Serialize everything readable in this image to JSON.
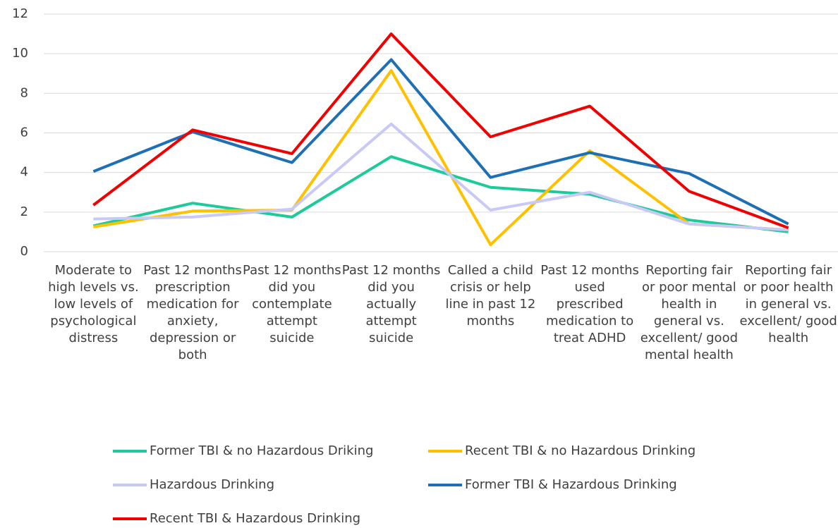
{
  "chart_data": {
    "type": "line",
    "categories": [
      "Moderate to high levels vs. low levels of psychological distress",
      "Past 12 months prescription medication for anxiety, depression or both",
      "Past 12 months did you contemplate attempt suicide",
      "Past 12 months did you actually attempt suicide",
      "Called a child crisis or help line in past 12 months",
      "Past 12 months used prescribed medication to treat ADHD",
      "Reporting fair or poor mental health in general vs. excellent/ good mental health",
      "Reporting fair or poor health in general vs. excellent/ good health"
    ],
    "series": [
      {
        "name": "Former TBI & no Hazardous Driking",
        "color": "#1ec99a",
        "values": [
          1.3,
          2.45,
          1.75,
          4.8,
          3.25,
          2.9,
          1.6,
          1.0
        ]
      },
      {
        "name": "Recent TBI & no Hazardous Drinking",
        "color": "#ffc000",
        "values": [
          1.25,
          2.05,
          2.1,
          9.15,
          0.35,
          5.1,
          1.4,
          1.1
        ]
      },
      {
        "name": "Hazardous Drinking",
        "color": "#c9c9f5",
        "values": [
          1.65,
          1.75,
          2.15,
          6.45,
          2.1,
          3.0,
          1.4,
          1.1
        ]
      },
      {
        "name": "Former TBI & Hazardous Drinking",
        "color": "#1f6fb5",
        "values": [
          4.05,
          6.05,
          4.5,
          9.7,
          3.75,
          5.0,
          3.95,
          1.4
        ]
      },
      {
        "name": "Recent TBI & Hazardous Drinking",
        "color": "#f00000",
        "values": [
          2.35,
          6.15,
          4.95,
          11.0,
          5.8,
          7.35,
          3.05,
          1.2
        ]
      }
    ],
    "ylim": [
      0,
      12
    ],
    "yticks": [
      0,
      2,
      4,
      6,
      8,
      10,
      12
    ],
    "grid": true
  }
}
